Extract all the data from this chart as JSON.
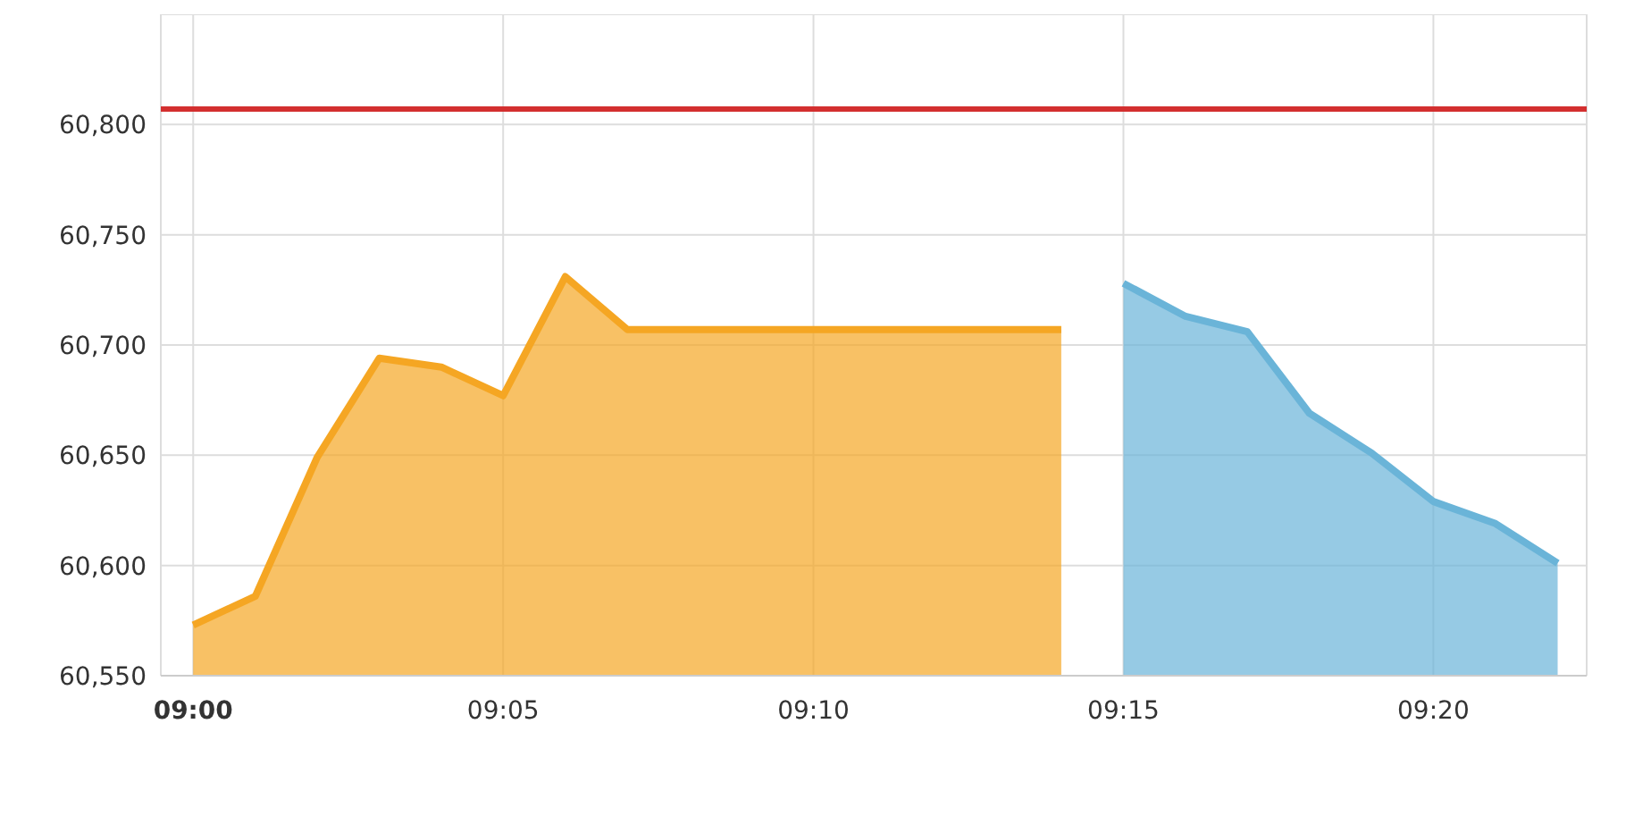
{
  "chart_data": {
    "type": "area",
    "x": [
      9,
      9.0167,
      9.0333,
      9.05,
      9.0667,
      9.0833,
      9.1,
      9.1167,
      9.1333,
      9.15,
      9.1667,
      9.1833,
      9.2,
      9.2167,
      9.2333
    ],
    "series": [
      {
        "color": "#f5a623",
        "values": [
          60573,
          60586,
          60649,
          60694,
          60690,
          60677,
          60731,
          60707,
          60707,
          60707,
          60707,
          60707,
          60707,
          60707,
          60707
        ]
      },
      {
        "color": "#6ab4d8",
        "x": [
          9.25,
          9.2667,
          9.2833,
          9.3,
          9.3167,
          9.3333,
          9.35,
          9.3667
        ],
        "values": [
          60728,
          60713,
          60706,
          60669,
          60651,
          60629,
          60619,
          60601
        ]
      }
    ],
    "xlim": [
      8.9913,
      9.3745
    ],
    "xticks": [
      {
        "value": 9,
        "label": "09:00"
      },
      {
        "value": 9.0833,
        "label": "09:05"
      },
      {
        "value": 9.1667,
        "label": "09:10"
      },
      {
        "value": 9.25,
        "label": "09:15"
      },
      {
        "value": 9.3333,
        "label": "09:20"
      }
    ],
    "ylim": [
      60550,
      60850
    ],
    "yticks": [
      {
        "value": 60550,
        "label": "60,550"
      },
      {
        "value": 60600,
        "label": "60,600"
      },
      {
        "value": 60650,
        "label": "60,650"
      },
      {
        "value": 60700,
        "label": "60,700"
      },
      {
        "value": 60750,
        "label": "60,750"
      },
      {
        "value": 60800,
        "label": "60,800"
      },
      {
        "value": 60850,
        "label": null
      }
    ],
    "ref_lines": [
      {
        "axis": "y",
        "value": 60807,
        "color": "#d32f2f"
      }
    ],
    "grid": true
  }
}
